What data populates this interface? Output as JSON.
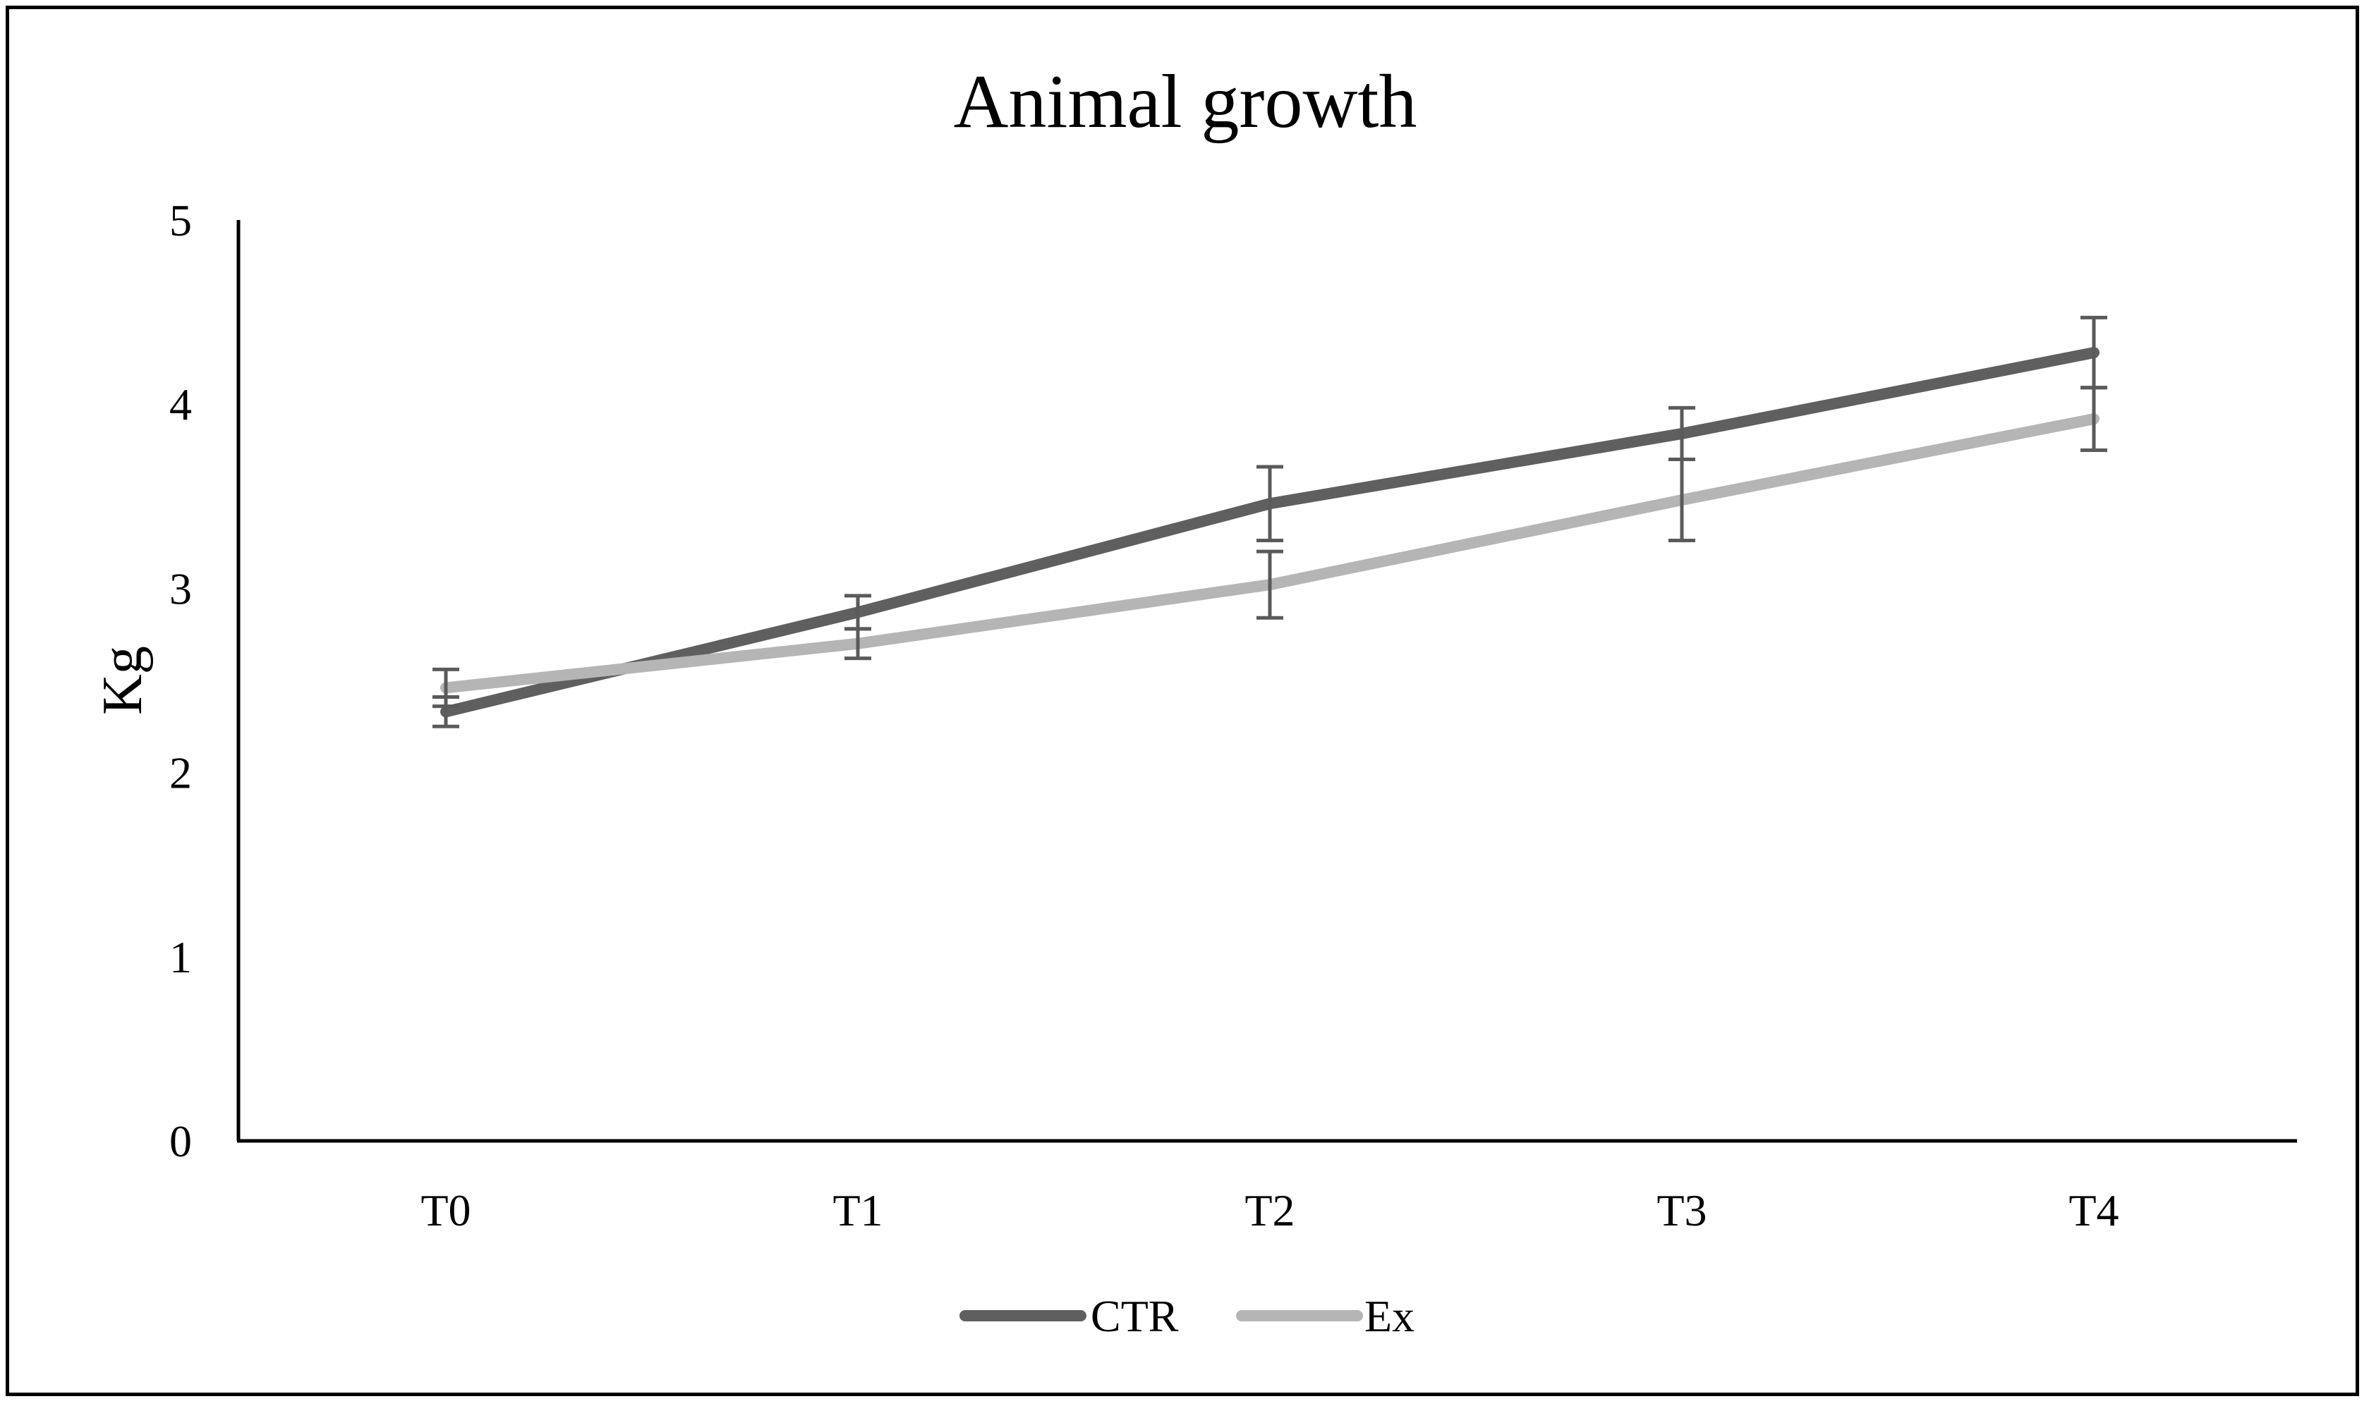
{
  "chart_data": {
    "type": "line",
    "title": "Animal growth",
    "xlabel": "",
    "ylabel": "Kg",
    "categories": [
      "T0",
      "T1",
      "T2",
      "T3",
      "T4"
    ],
    "ylim": [
      0,
      5
    ],
    "yticks": [
      "0",
      "1",
      "2",
      "3",
      "4",
      "5"
    ],
    "grid": false,
    "legend_position": "bottom",
    "series": [
      {
        "name": "CTR",
        "color": "#5f5f5f",
        "values": [
          2.33,
          2.87,
          3.46,
          3.84,
          4.28
        ],
        "errors": [
          0.08,
          0.09,
          0.2,
          0.14,
          0.19
        ]
      },
      {
        "name": "Ex",
        "color": "#b5b5b5",
        "values": [
          2.46,
          2.7,
          3.02,
          3.48,
          3.92
        ],
        "errors": [
          0.1,
          0.08,
          0.18,
          0.22,
          0.17
        ]
      }
    ],
    "error_bar_color": "#5a5a5a"
  }
}
